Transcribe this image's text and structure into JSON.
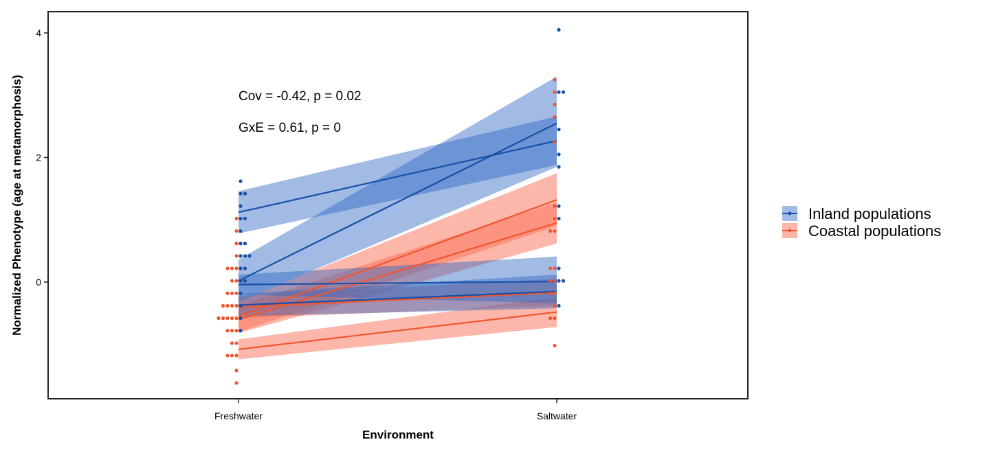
{
  "chart_data": {
    "type": "scatter",
    "title": "",
    "xlabel": "Environment",
    "ylabel": "Normalized Phenotype (age at metamorphosis)",
    "categories": [
      "Freshwater",
      "Saltwater"
    ],
    "ylim": [
      -1.9,
      4.25
    ],
    "yticks": [
      "0",
      "2",
      "4"
    ],
    "grid": false,
    "legend_position": "right",
    "annotations": [
      "Cov = -0.42, p = 0.02",
      "GxE = 0.61, p = 0"
    ],
    "colors": {
      "inland": "#1650a8",
      "inland_band": "#2e68c4",
      "coastal": "#f2552e",
      "coastal_band": "#fb6f55"
    },
    "series": [
      {
        "name": "Inland populations",
        "color_key": "inland",
        "lines": [
          {
            "fresh": 1.12,
            "salt": 2.27,
            "ci_lo": [
              0.78,
              1.88
            ],
            "ci_hi": [
              1.46,
              2.66
            ]
          },
          {
            "fresh": 0.02,
            "salt": 2.55,
            "ci_lo": [
              -0.32,
              1.85
            ],
            "ci_hi": [
              0.36,
              3.3
            ]
          },
          {
            "fresh": -0.04,
            "salt": 0.01,
            "ci_lo": [
              -0.2,
              -0.34
            ],
            "ci_hi": [
              0.12,
              0.41
            ]
          },
          {
            "fresh": -0.37,
            "salt": -0.15,
            "ci_lo": [
              -0.55,
              -0.42
            ],
            "ci_hi": [
              -0.19,
              0.12
            ]
          }
        ],
        "points": {
          "fresh": [
            1.62,
            1.42,
            1.42,
            1.22,
            1.02,
            1.02,
            0.82,
            0.62,
            0.62,
            0.42,
            0.42,
            0.42,
            0.22,
            0.22,
            0.02,
            0.02,
            -0.18,
            -0.38,
            -0.58,
            -0.78
          ],
          "salt": [
            4.05,
            3.05,
            3.05,
            2.45,
            2.05,
            1.85,
            1.22,
            1.02,
            0.22,
            0.02,
            0.02,
            -0.38
          ]
        }
      },
      {
        "name": "Coastal populations",
        "color_key": "coastal",
        "lines": [
          {
            "fresh": -0.55,
            "salt": 1.32,
            "ci_lo": [
              -0.8,
              0.9
            ],
            "ci_hi": [
              -0.3,
              1.75
            ]
          },
          {
            "fresh": -0.6,
            "salt": 0.95,
            "ci_lo": [
              -0.82,
              0.62
            ],
            "ci_hi": [
              -0.38,
              1.28
            ]
          },
          {
            "fresh": -0.4,
            "salt": -0.17,
            "ci_lo": [
              -0.58,
              -0.38
            ],
            "ci_hi": [
              -0.22,
              0.05
            ]
          },
          {
            "fresh": -1.08,
            "salt": -0.48,
            "ci_lo": [
              -1.24,
              -0.72
            ],
            "ci_hi": [
              -0.92,
              -0.24
            ]
          }
        ],
        "points": {
          "fresh": [
            1.02,
            0.82,
            0.62,
            0.42,
            0.22,
            0.22,
            0.22,
            0.02,
            0.02,
            -0.18,
            -0.18,
            -0.18,
            -0.38,
            -0.38,
            -0.38,
            -0.38,
            -0.58,
            -0.58,
            -0.58,
            -0.58,
            -0.58,
            -0.78,
            -0.78,
            -0.78,
            -0.98,
            -0.98,
            -1.18,
            -1.18,
            -1.18,
            -1.42,
            -1.62
          ],
          "salt": [
            3.25,
            3.05,
            2.85,
            2.65,
            2.25,
            1.22,
            1.02,
            0.82,
            0.82,
            0.22,
            0.22,
            0.02,
            0.02,
            -0.18,
            -0.18,
            -0.38,
            -0.58,
            -0.58,
            -1.02
          ]
        }
      }
    ]
  }
}
